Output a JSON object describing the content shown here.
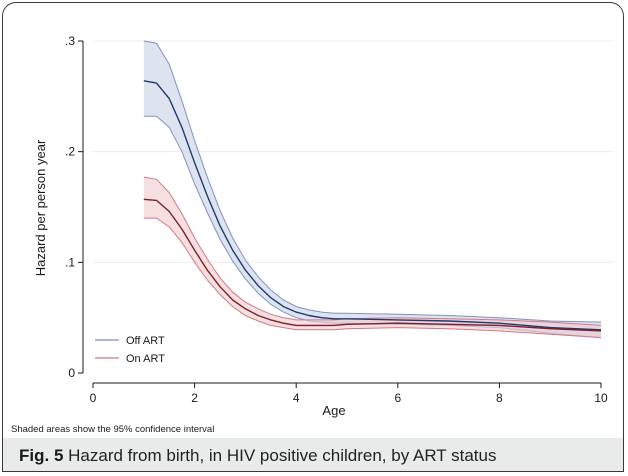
{
  "chart_data": {
    "type": "line",
    "xlabel": "Age",
    "ylabel": "Hazard per person year",
    "xlim": [
      0,
      10
    ],
    "ylim": [
      0,
      0.3
    ],
    "x_ticks": [
      0,
      2,
      4,
      6,
      8,
      10
    ],
    "x_tick_labels": [
      "0",
      "2",
      "4",
      "6",
      "8",
      "10"
    ],
    "y_ticks": [
      0,
      0.1,
      0.2,
      0.3
    ],
    "y_tick_labels": [
      "0",
      ".1",
      ".2",
      ".3"
    ],
    "grid": "horizontal",
    "legend_position": "bottom-left",
    "series": [
      {
        "name": "Off ART",
        "line_color": "#1f3b6e",
        "band_color": "#c8d0e6",
        "band_edge_color": "#7e92c0",
        "x": [
          1.0,
          1.25,
          1.5,
          1.75,
          2.0,
          2.25,
          2.5,
          2.75,
          3.0,
          3.25,
          3.5,
          3.75,
          4.0,
          4.25,
          4.5,
          4.75,
          5.0,
          6.0,
          7.0,
          8.0,
          9.0,
          10.0
        ],
        "y": [
          0.264,
          0.262,
          0.248,
          0.222,
          0.19,
          0.16,
          0.133,
          0.111,
          0.093,
          0.079,
          0.068,
          0.06,
          0.055,
          0.052,
          0.05,
          0.049,
          0.049,
          0.048,
          0.047,
          0.045,
          0.041,
          0.039
        ],
        "lower": [
          0.232,
          0.232,
          0.222,
          0.2,
          0.171,
          0.145,
          0.121,
          0.101,
          0.085,
          0.072,
          0.062,
          0.055,
          0.05,
          0.047,
          0.046,
          0.045,
          0.045,
          0.044,
          0.043,
          0.041,
          0.036,
          0.032
        ],
        "upper": [
          0.3,
          0.298,
          0.279,
          0.246,
          0.21,
          0.177,
          0.147,
          0.122,
          0.102,
          0.087,
          0.075,
          0.066,
          0.06,
          0.057,
          0.055,
          0.054,
          0.054,
          0.053,
          0.052,
          0.05,
          0.047,
          0.046
        ]
      },
      {
        "name": "On ART",
        "line_color": "#7a1f2b",
        "band_color": "#f0c9cd",
        "band_edge_color": "#d17a86",
        "x": [
          1.0,
          1.25,
          1.5,
          1.75,
          2.0,
          2.25,
          2.5,
          2.75,
          3.0,
          3.25,
          3.5,
          3.75,
          4.0,
          4.25,
          4.5,
          4.75,
          5.0,
          6.0,
          7.0,
          8.0,
          9.0,
          10.0
        ],
        "y": [
          0.157,
          0.156,
          0.146,
          0.13,
          0.111,
          0.093,
          0.078,
          0.066,
          0.058,
          0.052,
          0.048,
          0.045,
          0.043,
          0.043,
          0.043,
          0.043,
          0.044,
          0.045,
          0.044,
          0.043,
          0.04,
          0.038
        ],
        "lower": [
          0.14,
          0.14,
          0.132,
          0.118,
          0.1,
          0.084,
          0.071,
          0.06,
          0.052,
          0.047,
          0.043,
          0.041,
          0.039,
          0.039,
          0.039,
          0.039,
          0.04,
          0.041,
          0.04,
          0.038,
          0.035,
          0.032
        ],
        "upper": [
          0.177,
          0.175,
          0.163,
          0.144,
          0.122,
          0.103,
          0.086,
          0.073,
          0.064,
          0.058,
          0.053,
          0.05,
          0.048,
          0.048,
          0.048,
          0.048,
          0.049,
          0.05,
          0.049,
          0.048,
          0.046,
          0.043
        ]
      }
    ],
    "note": "Shaded areas show the 95% confidence interval"
  },
  "caption": {
    "label": "Fig. 5",
    "text": " Hazard from birth, in HIV positive children, by ART status"
  }
}
